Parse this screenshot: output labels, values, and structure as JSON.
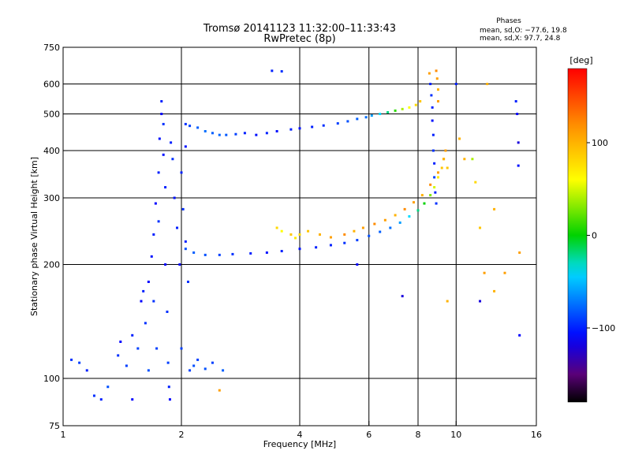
{
  "header": {
    "title": "Tromsø 20141123 11:32:00–11:33:43",
    "subtitle": "RwPretec (8p)",
    "phases_label": "Phases",
    "phases_o": "mean, sd,O: −77.6, 19.8",
    "phases_x": "mean, sd,X:  97.7, 24.8"
  },
  "colorbar": {
    "unit": "[deg]",
    "range": [
      -180,
      180
    ],
    "ticks": [
      {
        "value": 100,
        "label": "100"
      },
      {
        "value": 0,
        "label": "0"
      },
      {
        "value": -100,
        "label": "−100"
      }
    ]
  },
  "chart_data": {
    "type": "scatter",
    "title": "Tromsø 20141123 11:32:00–11:33:43",
    "subtitle": "RwPretec (8p)",
    "xlabel": "Frequency [MHz]",
    "ylabel": "Stationary phase Virtual Height [km]",
    "xscale": "log",
    "yscale": "log",
    "xlim": [
      1,
      16
    ],
    "ylim": [
      75,
      750
    ],
    "grid": true,
    "x_ticks": [
      {
        "value": 1,
        "label": "1"
      },
      {
        "value": 2,
        "label": "2"
      },
      {
        "value": 4,
        "label": "4"
      },
      {
        "value": 6,
        "label": "6"
      },
      {
        "value": 8,
        "label": "8"
      },
      {
        "value": 10,
        "label": "10"
      },
      {
        "value": 16,
        "label": "16"
      }
    ],
    "y_ticks": [
      {
        "value": 75,
        "label": "75"
      },
      {
        "value": 100,
        "label": "100"
      },
      {
        "value": 200,
        "label": "200"
      },
      {
        "value": 300,
        "label": "300"
      },
      {
        "value": 400,
        "label": "400"
      },
      {
        "value": 500,
        "label": "500"
      },
      {
        "value": 600,
        "label": "600"
      },
      {
        "value": 750,
        "label": "750"
      }
    ],
    "grid_x": [
      2,
      4,
      6,
      8,
      10
    ],
    "grid_y": [
      100,
      200,
      300,
      400,
      500,
      600
    ],
    "color_encoding": "phase [deg]",
    "series": [
      {
        "points": [
          [
            1.05,
            112,
            -95
          ],
          [
            1.1,
            110,
            -90
          ],
          [
            1.15,
            105,
            -100
          ],
          [
            1.2,
            90,
            -95
          ],
          [
            1.25,
            88,
            -100
          ],
          [
            1.3,
            95,
            -85
          ],
          [
            1.38,
            115,
            -95
          ],
          [
            1.4,
            125,
            -110
          ],
          [
            1.45,
            108,
            -90
          ],
          [
            1.5,
            130,
            -100
          ],
          [
            1.5,
            88,
            -110
          ],
          [
            1.55,
            120,
            -90
          ],
          [
            1.58,
            160,
            -110
          ],
          [
            1.6,
            170,
            -100
          ],
          [
            1.62,
            140,
            -95
          ],
          [
            1.65,
            105,
            -85
          ],
          [
            1.65,
            180,
            -110
          ],
          [
            1.68,
            210,
            -105
          ],
          [
            1.7,
            240,
            -100
          ],
          [
            1.7,
            160,
            -95
          ],
          [
            1.72,
            290,
            -110
          ],
          [
            1.73,
            120,
            -90
          ],
          [
            1.75,
            350,
            -100
          ],
          [
            1.75,
            260,
            -95
          ],
          [
            1.76,
            430,
            -105
          ],
          [
            1.78,
            500,
            -110
          ],
          [
            1.78,
            540,
            -100
          ],
          [
            1.8,
            470,
            -95
          ],
          [
            1.8,
            390,
            -105
          ],
          [
            1.82,
            320,
            -100
          ],
          [
            1.82,
            200,
            -110
          ],
          [
            1.84,
            150,
            -95
          ],
          [
            1.85,
            110,
            -90
          ],
          [
            1.86,
            95,
            -100
          ],
          [
            1.87,
            88,
            -110
          ],
          [
            1.88,
            420,
            -100
          ],
          [
            1.9,
            380,
            -95
          ],
          [
            1.92,
            300,
            -105
          ],
          [
            1.95,
            250,
            -100
          ],
          [
            1.98,
            200,
            -110
          ],
          [
            2.0,
            350,
            -100
          ],
          [
            2.0,
            120,
            -90
          ],
          [
            2.02,
            280,
            -95
          ],
          [
            2.05,
            230,
            -100
          ],
          [
            2.05,
            410,
            -105
          ],
          [
            2.08,
            180,
            -95
          ],
          [
            2.1,
            105,
            -90
          ],
          [
            2.15,
            108,
            -85
          ],
          [
            2.2,
            112,
            -90
          ],
          [
            2.3,
            106,
            -85
          ],
          [
            2.4,
            110,
            -90
          ],
          [
            2.55,
            105,
            -80
          ]
        ]
      },
      {
        "points": [
          [
            2.05,
            470,
            -95
          ],
          [
            2.1,
            465,
            -90
          ],
          [
            2.2,
            460,
            -80
          ],
          [
            2.3,
            450,
            -75
          ],
          [
            2.4,
            445,
            -80
          ],
          [
            2.5,
            440,
            -78
          ],
          [
            2.6,
            440,
            -82
          ],
          [
            2.75,
            442,
            -90
          ],
          [
            2.9,
            445,
            -100
          ],
          [
            3.1,
            440,
            -105
          ],
          [
            3.3,
            445,
            -100
          ],
          [
            3.5,
            450,
            -105
          ],
          [
            3.8,
            455,
            -100
          ],
          [
            4.0,
            458,
            -105
          ],
          [
            4.3,
            462,
            -100
          ],
          [
            4.6,
            466,
            -95
          ],
          [
            5.0,
            472,
            -90
          ],
          [
            5.3,
            478,
            -85
          ],
          [
            5.6,
            485,
            -80
          ],
          [
            5.9,
            490,
            -75
          ],
          [
            6.1,
            495,
            -60
          ],
          [
            6.4,
            500,
            -40
          ],
          [
            6.7,
            505,
            -20
          ],
          [
            7.0,
            510,
            10
          ],
          [
            7.3,
            515,
            40
          ],
          [
            7.6,
            520,
            60
          ],
          [
            7.9,
            528,
            80
          ],
          [
            8.1,
            540,
            90
          ]
        ]
      },
      {
        "points": [
          [
            2.05,
            220,
            -85
          ],
          [
            2.15,
            215,
            -80
          ],
          [
            2.3,
            212,
            -85
          ],
          [
            2.5,
            212,
            -90
          ],
          [
            2.7,
            213,
            -95
          ],
          [
            3.0,
            214,
            -100
          ],
          [
            3.3,
            215,
            -105
          ],
          [
            3.6,
            217,
            -100
          ],
          [
            4.0,
            220,
            -105
          ],
          [
            4.4,
            222,
            -100
          ],
          [
            4.8,
            225,
            -100
          ],
          [
            5.2,
            228,
            -95
          ],
          [
            5.6,
            232,
            -90
          ],
          [
            6.0,
            238,
            -85
          ],
          [
            6.4,
            244,
            -80
          ],
          [
            6.8,
            250,
            -75
          ],
          [
            7.2,
            258,
            -60
          ],
          [
            7.6,
            268,
            -40
          ],
          [
            8.0,
            278,
            -20
          ],
          [
            8.3,
            290,
            0
          ],
          [
            8.6,
            305,
            30
          ],
          [
            8.8,
            320,
            50
          ],
          [
            9.0,
            340,
            70
          ],
          [
            9.2,
            360,
            90
          ],
          [
            9.3,
            380,
            100
          ],
          [
            9.4,
            400,
            110
          ]
        ]
      },
      {
        "points": [
          [
            3.5,
            250,
            80
          ],
          [
            3.6,
            245,
            60
          ],
          [
            3.8,
            240,
            90
          ],
          [
            3.9,
            235,
            70
          ],
          [
            4.0,
            240,
            80
          ],
          [
            4.2,
            245,
            90
          ],
          [
            4.5,
            240,
            100
          ],
          [
            4.8,
            236,
            110
          ],
          [
            5.2,
            240,
            120
          ],
          [
            5.5,
            245,
            100
          ],
          [
            5.8,
            250,
            110
          ],
          [
            6.2,
            256,
            120
          ],
          [
            6.6,
            262,
            110
          ],
          [
            7.0,
            270,
            100
          ],
          [
            7.4,
            280,
            120
          ],
          [
            7.8,
            292,
            110
          ],
          [
            8.2,
            305,
            100
          ],
          [
            8.6,
            325,
            120
          ],
          [
            9.0,
            350,
            110
          ],
          [
            9.3,
            380,
            100
          ],
          [
            9.5,
            360,
            90
          ]
        ]
      },
      {
        "points": [
          [
            8.6,
            600,
            -100
          ],
          [
            8.65,
            560,
            -95
          ],
          [
            8.7,
            520,
            -100
          ],
          [
            8.7,
            480,
            -105
          ],
          [
            8.75,
            440,
            -100
          ],
          [
            8.75,
            400,
            -95
          ],
          [
            8.8,
            370,
            -100
          ],
          [
            8.8,
            340,
            -90
          ],
          [
            8.85,
            310,
            -100
          ],
          [
            8.9,
            290,
            -95
          ],
          [
            8.9,
            650,
            120
          ],
          [
            8.95,
            620,
            110
          ],
          [
            9.0,
            580,
            100
          ],
          [
            9.0,
            540,
            110
          ],
          [
            8.55,
            640,
            110
          ]
        ]
      },
      {
        "points": [
          [
            3.4,
            650,
            -100
          ],
          [
            3.6,
            648,
            -95
          ],
          [
            5.6,
            200,
            -110
          ],
          [
            7.3,
            165,
            -120
          ],
          [
            9.5,
            160,
            100
          ],
          [
            10.0,
            600,
            -100
          ],
          [
            10.2,
            430,
            100
          ],
          [
            10.5,
            380,
            100
          ],
          [
            11.0,
            380,
            40
          ],
          [
            11.2,
            330,
            80
          ],
          [
            11.5,
            250,
            90
          ],
          [
            11.5,
            160,
            -120
          ],
          [
            11.8,
            190,
            110
          ],
          [
            12.5,
            280,
            100
          ],
          [
            12.5,
            170,
            100
          ],
          [
            13.3,
            190,
            110
          ],
          [
            14.2,
            540,
            -100
          ],
          [
            14.3,
            500,
            -110
          ],
          [
            14.4,
            420,
            -120
          ],
          [
            14.4,
            365,
            -105
          ],
          [
            14.5,
            215,
            110
          ],
          [
            14.5,
            130,
            -110
          ],
          [
            12.0,
            600,
            100
          ],
          [
            2.5,
            93,
            110
          ]
        ]
      }
    ]
  }
}
